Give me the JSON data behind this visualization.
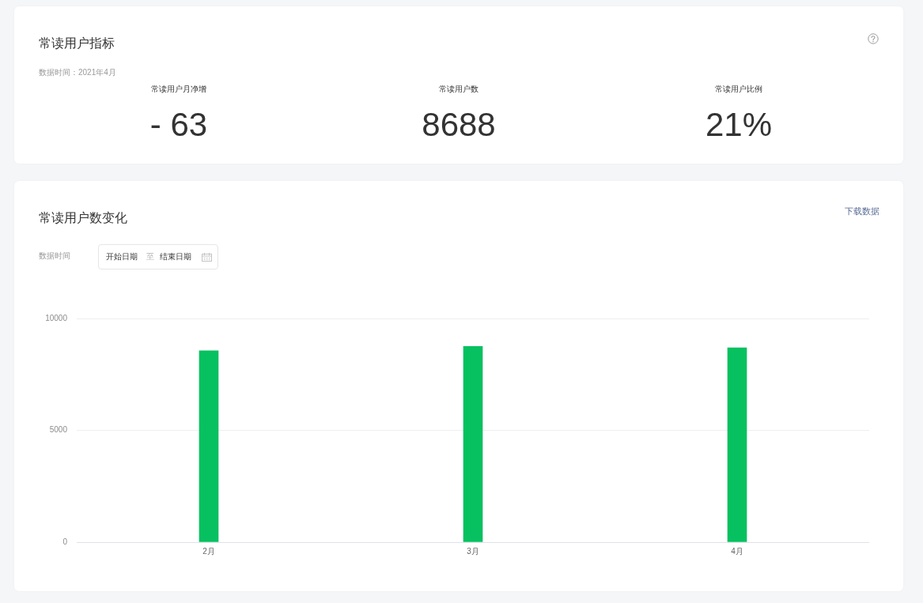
{
  "chart_data": [
    {
      "type": "other",
      "title": "常读用户指标",
      "subtitle": "数据时间：2021年4月",
      "annotations": [
        "常读用户月净增",
        "- 63",
        "常读用户数",
        "8688",
        "常读用户比例",
        "21%"
      ]
    },
    {
      "type": "bar",
      "title": "常读用户数变化",
      "annotations": [
        "下载数据",
        "数据时间",
        "开始日期",
        "至",
        "结束日期"
      ],
      "categories": [
        "2月",
        "3月",
        "4月"
      ],
      "values": [
        8560,
        8750,
        8690
      ],
      "color": "#07c160",
      "ylim": [
        0,
        10000
      ],
      "yticks": [
        0,
        5000,
        10000
      ],
      "grid": "y"
    }
  ]
}
